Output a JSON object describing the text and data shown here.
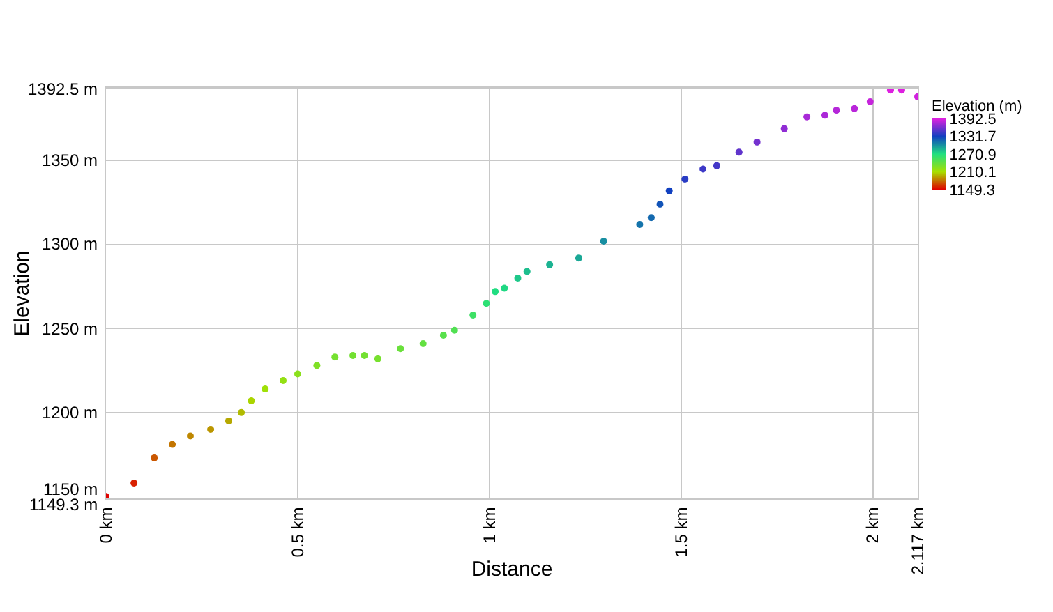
{
  "chart_data": {
    "type": "scatter",
    "xlabel": "Distance",
    "ylabel": "Elevation",
    "clabel": "Elevation (m)",
    "x": [
      0,
      0.073,
      0.126,
      0.173,
      0.22,
      0.273,
      0.32,
      0.353,
      0.379,
      0.415,
      0.462,
      0.5,
      0.55,
      0.597,
      0.644,
      0.674,
      0.709,
      0.768,
      0.827,
      0.88,
      0.909,
      0.957,
      0.992,
      1.015,
      1.039,
      1.074,
      1.098,
      1.157,
      1.233,
      1.298,
      1.392,
      1.422,
      1.445,
      1.469,
      1.51,
      1.557,
      1.593,
      1.651,
      1.698,
      1.769,
      1.828,
      1.875,
      1.905,
      1.952,
      1.993,
      2.046,
      2.075,
      2.117
    ],
    "values": [
      1150,
      1158,
      1173,
      1181,
      1186,
      1190,
      1195,
      1200,
      1207,
      1214,
      1219,
      1223,
      1228,
      1233,
      1234,
      1234,
      1232,
      1238,
      1241,
      1246,
      1249,
      1258,
      1265,
      1272,
      1274,
      1280,
      1284,
      1288,
      1292,
      1302,
      1312,
      1316,
      1324,
      1332,
      1339,
      1345,
      1347,
      1355,
      1361,
      1369,
      1376,
      1377,
      1380,
      1381,
      1385,
      1392,
      1392,
      1388
    ],
    "cvalues": [
      1150,
      1158,
      1173,
      1181,
      1186,
      1190,
      1195,
      1200,
      1207,
      1214,
      1219,
      1223,
      1228,
      1233,
      1234,
      1234,
      1232,
      1238,
      1241,
      1246,
      1249,
      1258,
      1265,
      1272,
      1274,
      1280,
      1284,
      1288,
      1292,
      1302,
      1312,
      1316,
      1324,
      1332,
      1339,
      1345,
      1347,
      1355,
      1361,
      1369,
      1376,
      1377,
      1380,
      1381,
      1385,
      1392,
      1392,
      1388
    ],
    "clim": [
      1149.3,
      1392.5
    ],
    "cticks": [
      1149.3,
      1210.1,
      1270.9,
      1331.7,
      1392.5
    ],
    "xlim": [
      0,
      2.117
    ],
    "xticks": [
      {
        "value": 0,
        "label": "0 km"
      },
      {
        "value": 0.5,
        "label": "0.5 km"
      },
      {
        "value": 1,
        "label": "1 km"
      },
      {
        "value": 1.5,
        "label": "1.5 km"
      },
      {
        "value": 2,
        "label": "2 km"
      },
      {
        "value": 2.117,
        "label": "2.117 km"
      }
    ],
    "ylim": [
      1149.3,
      1392.5
    ],
    "yticks": [
      {
        "value": 1149.3,
        "label": "1149.3 m"
      },
      {
        "value": 1150,
        "label": "1150 m"
      },
      {
        "value": 1200,
        "label": "1200 m"
      },
      {
        "value": 1250,
        "label": "1250 m"
      },
      {
        "value": 1300,
        "label": "1300 m"
      },
      {
        "value": 1350,
        "label": "1350 m"
      },
      {
        "value": 1392.5,
        "label": "1392.5 m"
      }
    ],
    "grid": true,
    "marker": "circle"
  }
}
